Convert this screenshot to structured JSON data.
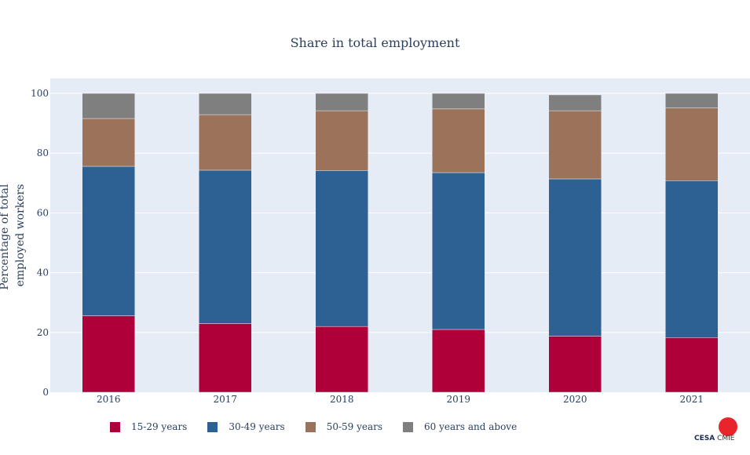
{
  "chart_data": {
    "type": "bar",
    "stacked": true,
    "title": "Share in total employment",
    "ylabel_lines": [
      "Percentage of total",
      "employed workers"
    ],
    "xlabel": "",
    "categories": [
      "2016",
      "2017",
      "2018",
      "2019",
      "2020",
      "2021"
    ],
    "ylim": [
      0,
      105
    ],
    "yticks": [
      0,
      20,
      40,
      60,
      80,
      100
    ],
    "grid": true,
    "legend_position": "bottom",
    "series": [
      {
        "name": "15-29 years",
        "color": "#b0003a",
        "values": [
          25.6,
          23.0,
          22.0,
          21.0,
          18.8,
          18.3
        ]
      },
      {
        "name": "30-49 years",
        "color": "#2e6193",
        "values": [
          50.0,
          51.3,
          52.2,
          52.5,
          52.6,
          52.5
        ]
      },
      {
        "name": "50-59 years",
        "color": "#9a735a",
        "values": [
          16.0,
          18.6,
          20.0,
          21.3,
          22.8,
          24.4
        ]
      },
      {
        "name": "60 years and above",
        "color": "#7f7f7f",
        "values": [
          8.4,
          7.1,
          5.8,
          5.2,
          5.3,
          4.8
        ]
      }
    ]
  },
  "logo": {
    "text_a": "CESA",
    "text_b": "CMIE"
  }
}
